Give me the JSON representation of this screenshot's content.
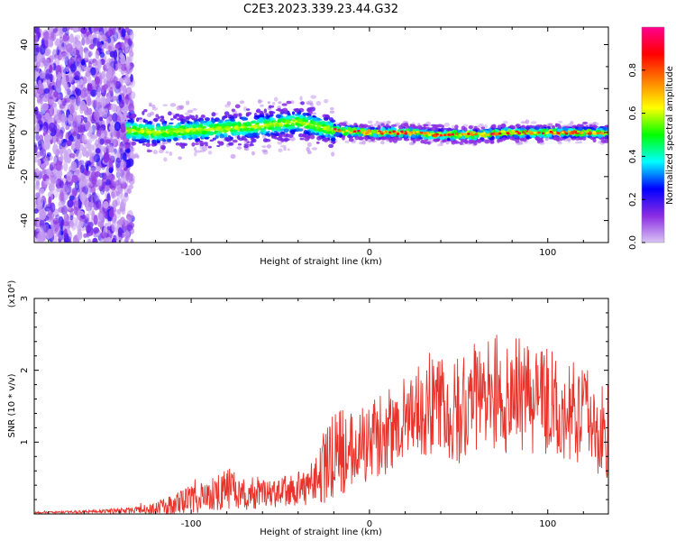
{
  "title": "C2E3.2023.339.23.44.G32",
  "chart_data": [
    {
      "type": "heatmap",
      "xlabel": "Height of straight line (km)",
      "ylabel": "Frequency (Hz)",
      "xlim": [
        -188,
        134
      ],
      "ylim": [
        -50,
        48
      ],
      "x_ticks": [
        -100,
        0,
        100
      ],
      "x_tick_labels": [
        "-100",
        "0",
        "100"
      ],
      "y_ticks": [
        -40,
        -20,
        0,
        20,
        40
      ],
      "y_tick_labels": [
        "-40",
        "-20",
        "0",
        "20",
        "40"
      ],
      "ridge": {
        "x": [
          -133,
          -120,
          -100,
          -80,
          -60,
          -40,
          -30,
          -20,
          0,
          20,
          40,
          60,
          80,
          100,
          120,
          134
        ],
        "y": [
          1,
          0,
          1,
          2,
          3,
          5,
          3,
          1,
          0,
          0,
          -1,
          -1,
          0,
          0,
          0,
          0
        ]
      },
      "colorbar": {
        "label": "Normalized spectral amplitude",
        "range": [
          0,
          1
        ],
        "ticks": [
          0.0,
          0.2,
          0.4,
          0.6,
          0.8
        ],
        "tick_labels": [
          "0.0",
          "0.2",
          "0.4",
          "0.6",
          "0.8"
        ],
        "colors": [
          "#d9c4f5",
          "#8a2be2",
          "#0000ff",
          "#00ffff",
          "#00ff00",
          "#ffff00",
          "#ff8000",
          "#ff0000",
          "#ff0090"
        ]
      }
    },
    {
      "type": "line",
      "xlabel": "Height of straight line (km)",
      "ylabel": "SNR (10 * v/v)",
      "y_multiplier": "(x10⁴)",
      "xlim": [
        -188,
        134
      ],
      "ylim": [
        0,
        3
      ],
      "x_ticks": [
        -100,
        0,
        100
      ],
      "x_tick_labels": [
        "-100",
        "0",
        "100"
      ],
      "y_ticks": [
        1,
        2,
        3
      ],
      "y_tick_labels": [
        "1",
        "2",
        "3"
      ],
      "series": [
        {
          "name": "SNR",
          "color": "#e8322a",
          "x": [
            -188,
            -160,
            -130,
            -115,
            -100,
            -90,
            -80,
            -70,
            -60,
            -50,
            -40,
            -30,
            -25,
            -20,
            -10,
            0,
            10,
            20,
            30,
            40,
            50,
            60,
            70,
            80,
            90,
            100,
            110,
            120,
            125,
            130,
            134
          ],
          "y": [
            0.02,
            0.03,
            0.05,
            0.1,
            0.2,
            0.25,
            0.35,
            0.3,
            0.3,
            0.3,
            0.35,
            0.5,
            0.65,
            0.8,
            0.95,
            1.0,
            1.15,
            1.35,
            1.45,
            1.55,
            1.45,
            1.6,
            1.65,
            1.7,
            1.6,
            1.55,
            1.45,
            1.4,
            1.35,
            1.25,
            1.2
          ],
          "spread": [
            0.01,
            0.02,
            0.05,
            0.12,
            0.2,
            0.22,
            0.3,
            0.25,
            0.22,
            0.22,
            0.25,
            0.4,
            0.5,
            0.6,
            0.6,
            0.55,
            0.6,
            0.6,
            0.7,
            0.75,
            0.75,
            0.8,
            0.85,
            0.85,
            0.75,
            0.75,
            0.7,
            0.7,
            0.7,
            0.75,
            0.7
          ]
        }
      ]
    }
  ]
}
